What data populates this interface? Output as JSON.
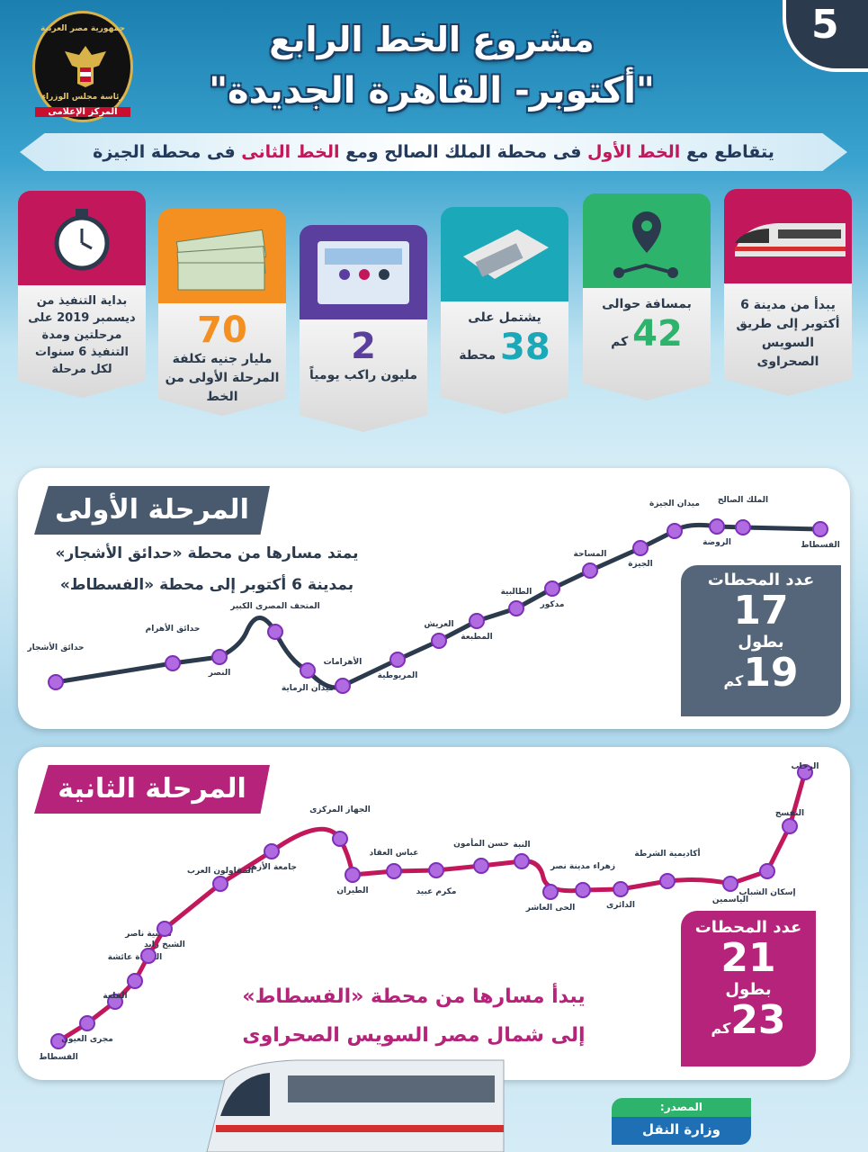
{
  "header": {
    "number": "5",
    "title_line1": "مشروع الخط الرابع",
    "title_line2": "\"أكتوبر- القاهرة الجديدة\"",
    "logo_top": "جمهورية مصر العربية",
    "logo_middle": "رئاسة مجلس الوزراء",
    "logo_bottom": "المركز الإعلامى"
  },
  "banner": {
    "segments": [
      "يتقاطع مع",
      "الخط الأول",
      "فى محطة الملك الصالح ومع",
      "الخط الثانى",
      "فى محطة الجيزة"
    ]
  },
  "cards": [
    {
      "text": "يبدأ من مدينة 6 أكتوبر إلى طريق السويس الصحراوى"
    },
    {
      "text": "بمسافة حوالى",
      "number": 42,
      "unit": "كم"
    },
    {
      "text": "يشتمل على",
      "number": 38,
      "unit": "محطة"
    },
    {
      "number": 2,
      "text": "مليون راكب يومياً"
    },
    {
      "number": 70,
      "text": "مليار جنيه تكلفة المرحلة الأولى من الخط"
    },
    {
      "text": "بداية التنفيذ من ديسمبر 2019 على مرحلتين ومدة التنفيذ 6 سنوات لكل مرحلة"
    }
  ],
  "phase1": {
    "title": "المرحلة الأولى",
    "description": [
      "يمتد مسارها من محطة «حدائق الأشجار»",
      "بمدينة 6 أكتوبر إلى محطة «الفسطاط»"
    ],
    "stations_label": "عدد المحطات",
    "stations_count": 17,
    "length_label": "بطول",
    "length": 19,
    "length_unit": "كم",
    "stations": [
      "حدائق الأشجار",
      "حدائق الأهرام",
      "النصر",
      "المتحف المصرى الكبير",
      "ميدان الرماية",
      "الأهرامات",
      "المريوطية",
      "العريش",
      "المطبعة",
      "الطالبية",
      "مدكور",
      "المساحة",
      "الجيزة",
      "ميدان الجيزة",
      "الروضة",
      "الملك الصالح",
      "الفسطاط"
    ]
  },
  "phase2": {
    "title": "المرحلة الثانية",
    "description": [
      "يبدأ مسارها من محطة «الفسطاط»",
      "إلى شمال مصر السويس الصحراوى"
    ],
    "stations_label": "عدد المحطات",
    "stations_count": 21,
    "length_label": "بطول",
    "length": 23,
    "length_unit": "كم",
    "stations": [
      "الفسطاط",
      "مجرى العيون",
      "القلعة",
      "السيدة عائشة",
      "منشية ناصر",
      "الشيخ زايد",
      "المقاولون العرب",
      "جامعة الأزهر",
      "الجهاز المركزى",
      "الطيران",
      "عباس العقاد",
      "مكرم عبيد",
      "حسن المأمون",
      "النبة",
      "الحى العاشر",
      "زهراء مدينة نصر",
      "الدائرى",
      "أكاديمية الشرطة",
      "الياسمين",
      "إسكان الشباب",
      "النفسج",
      "الرحاب"
    ]
  },
  "footer": {
    "source_label": "المصدر:",
    "source": "وزارة النقل"
  }
}
